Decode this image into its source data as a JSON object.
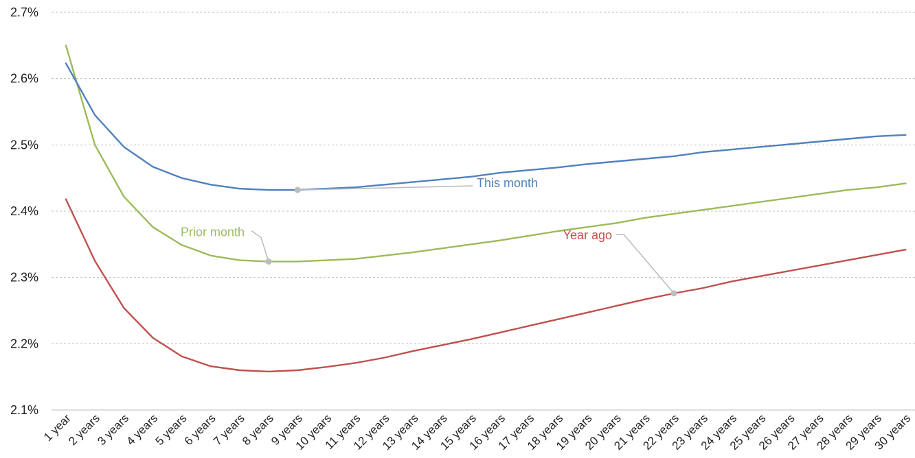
{
  "chart_data": {
    "type": "line",
    "title": "",
    "xlabel": "",
    "ylabel": "",
    "ylim": [
      2.1,
      2.7
    ],
    "y_ticks": [
      2.1,
      2.2,
      2.3,
      2.4,
      2.5,
      2.6,
      2.7
    ],
    "y_tick_labels": [
      "2.1%",
      "2.2%",
      "2.3%",
      "2.4%",
      "2.5%",
      "2.6%",
      "2.7%"
    ],
    "y_unit": "%",
    "grid": true,
    "legend": "none",
    "categories": [
      "1 year",
      "2 years",
      "3 years",
      "4 years",
      "5 years",
      "6 years",
      "7 years",
      "8 years",
      "9 years",
      "10 years",
      "11 years",
      "12 years",
      "13 years",
      "14 years",
      "15 years",
      "16 years",
      "17 years",
      "18 years",
      "19 years",
      "20 years",
      "21 years",
      "22 years",
      "23 years",
      "24 years",
      "25 years",
      "26 years",
      "27 years",
      "28 years",
      "29 years",
      "30 years"
    ],
    "series": [
      {
        "name": "This month",
        "color": "#4f81bd",
        "values": [
          2.623,
          2.545,
          2.497,
          2.467,
          2.45,
          2.44,
          2.434,
          2.432,
          2.432,
          2.434,
          2.436,
          2.44,
          2.444,
          2.448,
          2.452,
          2.458,
          2.462,
          2.466,
          2.471,
          2.475,
          2.479,
          2.483,
          2.489,
          2.493,
          2.497,
          2.501,
          2.505,
          2.509,
          2.513,
          2.515
        ],
        "annotation": {
          "label": "This month",
          "category": "9 years"
        }
      },
      {
        "name": "Prior month",
        "color": "#9bbb59",
        "values": [
          2.65,
          2.5,
          2.422,
          2.376,
          2.349,
          2.333,
          2.326,
          2.324,
          2.324,
          2.326,
          2.328,
          2.333,
          2.338,
          2.344,
          2.35,
          2.356,
          2.363,
          2.37,
          2.376,
          2.382,
          2.39,
          2.396,
          2.402,
          2.408,
          2.414,
          2.42,
          2.426,
          2.432,
          2.436,
          2.442
        ],
        "annotation": {
          "label": "Prior month",
          "category": "8 years"
        }
      },
      {
        "name": "Year ago",
        "color": "#c0504d",
        "values": [
          2.418,
          2.325,
          2.254,
          2.209,
          2.181,
          2.166,
          2.16,
          2.158,
          2.16,
          2.165,
          2.171,
          2.179,
          2.189,
          2.198,
          2.207,
          2.217,
          2.227,
          2.237,
          2.247,
          2.257,
          2.267,
          2.276,
          2.284,
          2.294,
          2.302,
          2.31,
          2.318,
          2.326,
          2.334,
          2.342
        ],
        "annotation": {
          "label": "Year ago",
          "category": "22 years"
        }
      }
    ]
  }
}
